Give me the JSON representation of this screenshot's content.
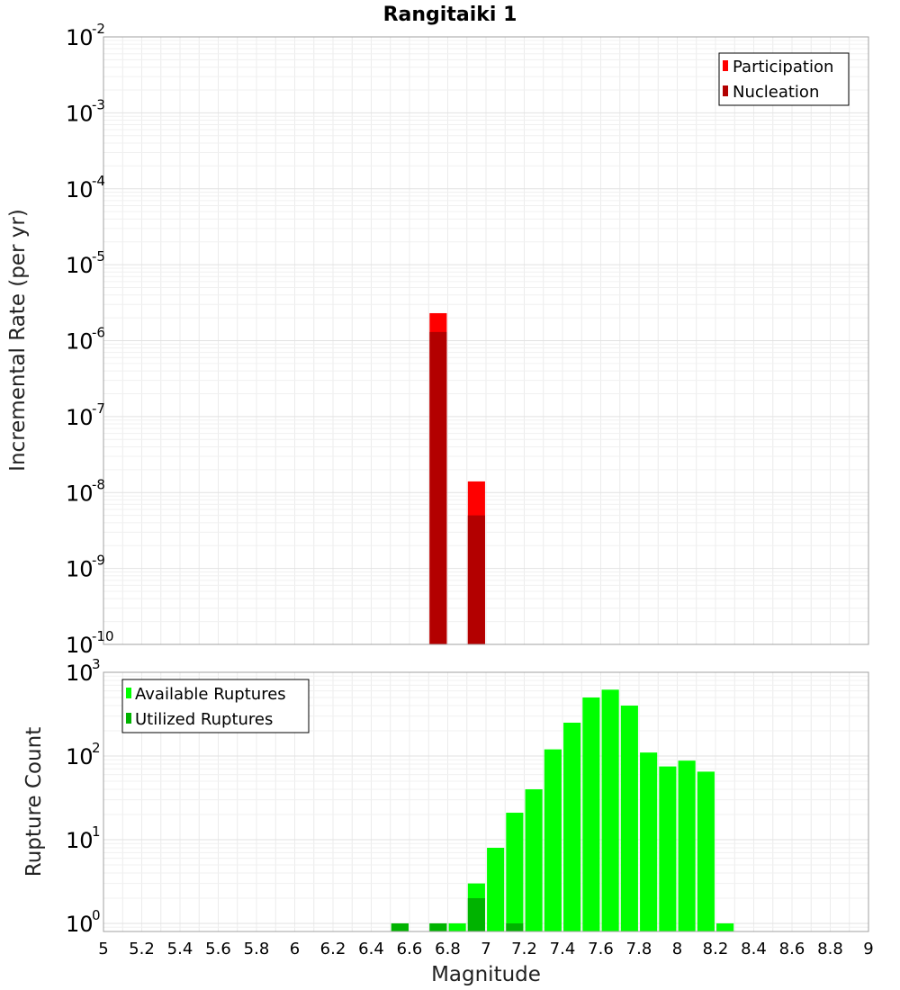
{
  "chart_data": [
    {
      "type": "bar",
      "title": "Rangitaiki 1",
      "xlabel": "",
      "ylabel": "Incremental Rate (per yr)",
      "yscale": "log",
      "xlim": [
        5,
        9
      ],
      "ylim": [
        1e-10,
        0.01
      ],
      "bin_width": 0.1,
      "grid": true,
      "legend_position": "top-right",
      "ytick_labels": [
        {
          "base": "10",
          "exp": "-10"
        },
        {
          "base": "10",
          "exp": "-9"
        },
        {
          "base": "10",
          "exp": "-8"
        },
        {
          "base": "10",
          "exp": "-7"
        },
        {
          "base": "10",
          "exp": "-6"
        },
        {
          "base": "10",
          "exp": "-5"
        },
        {
          "base": "10",
          "exp": "-4"
        },
        {
          "base": "10",
          "exp": "-3"
        },
        {
          "base": "10",
          "exp": "-2"
        }
      ],
      "series": [
        {
          "name": "Participation",
          "color": "#ff0000",
          "x": [
            6.75,
            6.95
          ],
          "values": [
            2.3e-06,
            1.4e-08
          ]
        },
        {
          "name": "Nucleation",
          "color": "#b30000",
          "x": [
            6.75,
            6.95
          ],
          "values": [
            1.3e-06,
            5e-09
          ]
        }
      ]
    },
    {
      "type": "bar",
      "title": "",
      "xlabel": "Magnitude",
      "ylabel": "Rupture Count",
      "yscale": "log",
      "xlim": [
        5,
        9
      ],
      "ylim": [
        0.8,
        1000
      ],
      "bin_width": 0.1,
      "grid": true,
      "legend_position": "top-left",
      "xtick_labels": [
        "5",
        "5.2",
        "5.4",
        "5.6",
        "5.8",
        "6",
        "6.2",
        "6.4",
        "6.6",
        "6.8",
        "7",
        "7.2",
        "7.4",
        "7.6",
        "7.8",
        "8",
        "8.2",
        "8.4",
        "8.6",
        "8.8",
        "9"
      ],
      "ytick_labels": [
        {
          "base": "10",
          "exp": "0"
        },
        {
          "base": "10",
          "exp": "1"
        },
        {
          "base": "10",
          "exp": "2"
        },
        {
          "base": "10",
          "exp": "3"
        }
      ],
      "series": [
        {
          "name": "Available Ruptures",
          "color": "#00ff00",
          "x": [
            6.55,
            6.75,
            6.85,
            6.95,
            7.05,
            7.15,
            7.25,
            7.35,
            7.45,
            7.55,
            7.65,
            7.75,
            7.85,
            7.95,
            8.05,
            8.15,
            8.25
          ],
          "values": [
            1,
            1,
            1,
            3,
            8,
            21,
            40,
            120,
            250,
            500,
            620,
            400,
            110,
            75,
            88,
            65,
            1
          ]
        },
        {
          "name": "Utilized Ruptures",
          "color": "#00b300",
          "x": [
            6.55,
            6.75,
            6.95,
            7.15
          ],
          "values": [
            1,
            1,
            2,
            1
          ]
        }
      ]
    }
  ]
}
